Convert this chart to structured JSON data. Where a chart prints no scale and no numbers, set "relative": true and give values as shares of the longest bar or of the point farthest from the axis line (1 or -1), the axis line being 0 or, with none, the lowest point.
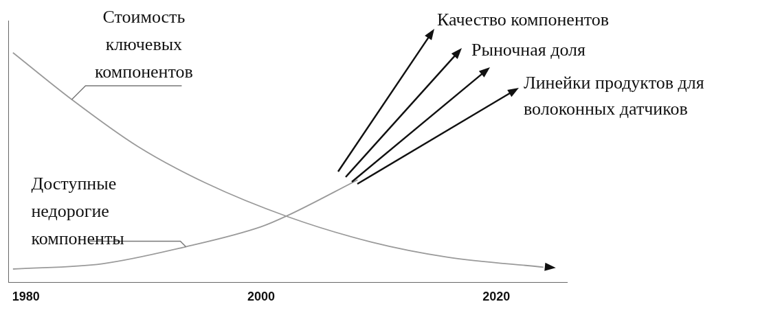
{
  "chart_data": {
    "type": "line",
    "relative": true,
    "xlim": [
      1978.5,
      2026
    ],
    "xticks": [
      1980,
      2000,
      2020
    ],
    "grid": false,
    "marker": "none",
    "series": [
      {
        "name": "Стоимость ключевых компонентов",
        "color": "#9a9a9a",
        "x": [
          1978.9,
          1983.9,
          1989.5,
          1995.3,
          2002.3,
          2009.4,
          2015.8,
          2024
        ],
        "values": [
          1,
          0.796,
          0.592,
          0.432,
          0.285,
          0.175,
          0.11,
          0.066
        ]
      },
      {
        "name": "Доступные недорогие компоненты",
        "color": "#9a9a9a",
        "x": [
          1978.9,
          1986.5,
          1993.6,
          2000,
          2002.3,
          2008.2
        ],
        "values": [
          0.058,
          0.081,
          0.155,
          0.242,
          0.292,
          0.446
        ]
      }
    ],
    "annotations": [
      "Качество компонентов",
      "Рыночная доля",
      "Линейки продуктов для волоконных датчиков"
    ]
  }
}
